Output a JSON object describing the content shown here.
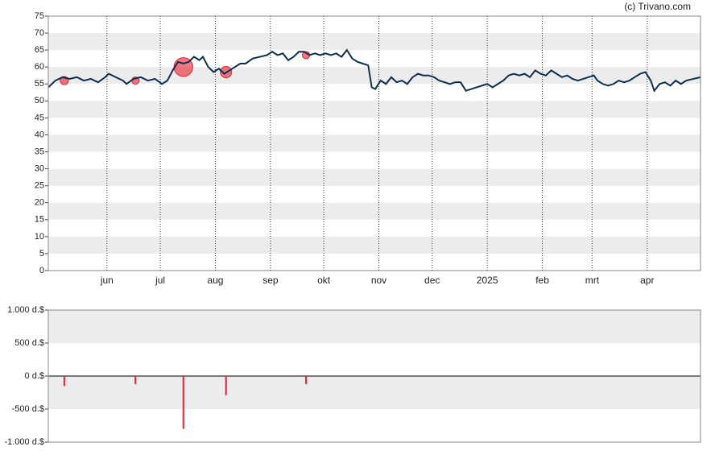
{
  "watermark": "(c) Trivano.com",
  "chart_data": [
    {
      "type": "line",
      "color": "#0d2f4f",
      "grid": true,
      "xlim": [
        1,
        368
      ],
      "xticks": [
        {
          "value": 34,
          "label": "jun"
        },
        {
          "value": 64,
          "label": "jul"
        },
        {
          "value": 95,
          "label": "aug"
        },
        {
          "value": 126,
          "label": "sep"
        },
        {
          "value": 156,
          "label": "okt"
        },
        {
          "value": 187,
          "label": "nov"
        },
        {
          "value": 217,
          "label": "dec"
        },
        {
          "value": 248,
          "label": "2025"
        },
        {
          "value": 279,
          "label": "feb"
        },
        {
          "value": 307,
          "label": "mrt"
        },
        {
          "value": 338,
          "label": "apr"
        }
      ],
      "ylim": [
        0,
        75
      ],
      "yticks": [
        0,
        5,
        10,
        15,
        20,
        25,
        30,
        35,
        40,
        45,
        50,
        55,
        60,
        65,
        70,
        75
      ],
      "x": [
        1,
        5,
        9,
        13,
        17,
        21,
        25,
        29,
        33,
        35,
        39,
        43,
        45,
        49,
        53,
        57,
        61,
        65,
        68,
        71,
        74,
        77,
        80,
        83,
        86,
        88,
        91,
        94,
        97,
        100,
        103,
        106,
        109,
        112,
        116,
        120,
        124,
        127,
        130,
        133,
        136,
        139,
        142,
        145,
        148,
        151,
        154,
        157,
        160,
        163,
        166,
        169,
        172,
        175,
        178,
        181,
        183,
        185,
        188,
        191,
        194,
        197,
        200,
        203,
        206,
        209,
        212,
        215,
        218,
        221,
        224,
        227,
        230,
        233,
        236,
        239,
        242,
        245,
        248,
        251,
        254,
        257,
        260,
        263,
        266,
        269,
        272,
        275,
        278,
        281,
        284,
        287,
        290,
        293,
        296,
        299,
        302,
        305,
        308,
        310,
        313,
        316,
        319,
        322,
        325,
        328,
        331,
        334,
        337,
        340,
        342,
        345,
        348,
        351,
        354,
        357,
        360,
        364,
        368
      ],
      "values": [
        54,
        56,
        57,
        56.5,
        57,
        56,
        56.5,
        55.5,
        57,
        58,
        57,
        56,
        55,
        56.5,
        57,
        56,
        56.5,
        55,
        56,
        59,
        61.5,
        61,
        61.5,
        63,
        62,
        63,
        60,
        58.5,
        59.5,
        58,
        59,
        60,
        61,
        61,
        62.5,
        63,
        63.5,
        64.5,
        63.5,
        64,
        62,
        63,
        64.5,
        64.5,
        63.5,
        64,
        63.5,
        64,
        63.5,
        64,
        63,
        65,
        62.5,
        61.5,
        61,
        60.5,
        54,
        53.5,
        56,
        55,
        57,
        55.5,
        56,
        55,
        57,
        58,
        57.5,
        57.5,
        57,
        56,
        55.5,
        55,
        55.5,
        55.5,
        53,
        53.5,
        54,
        54.5,
        55,
        54,
        55,
        56,
        57.5,
        58,
        57.5,
        58,
        57,
        59,
        58,
        57.5,
        59,
        58,
        57,
        57.5,
        56.5,
        56,
        56.5,
        57,
        57.5,
        56,
        55,
        54.5,
        55,
        56,
        55.5,
        56,
        57,
        58,
        58.5,
        56,
        53,
        55,
        55.5,
        54.5,
        56,
        55,
        56,
        56.5,
        57
      ],
      "markers": {
        "color": "#e8212e",
        "x": [
          10,
          50,
          77,
          101,
          146
        ],
        "values": [
          56,
          56,
          60,
          58.5,
          63.5
        ]
      }
    },
    {
      "type": "bar",
      "color": "#e8212e",
      "grid": true,
      "xlim": [
        1,
        368
      ],
      "x": [
        10,
        50,
        77,
        101,
        146
      ],
      "values": [
        -150,
        -120,
        -800,
        -290,
        -120
      ],
      "ylim": [
        -1000,
        1000
      ],
      "yticks": [
        {
          "value": -1000,
          "label": "-1.000 d.$"
        },
        {
          "value": -500,
          "label": "-500 d.$"
        },
        {
          "value": 0,
          "label": "0 d.$"
        },
        {
          "value": 500,
          "label": "500 d.$"
        },
        {
          "value": 1000,
          "label": "1.000 d.$"
        }
      ]
    }
  ]
}
